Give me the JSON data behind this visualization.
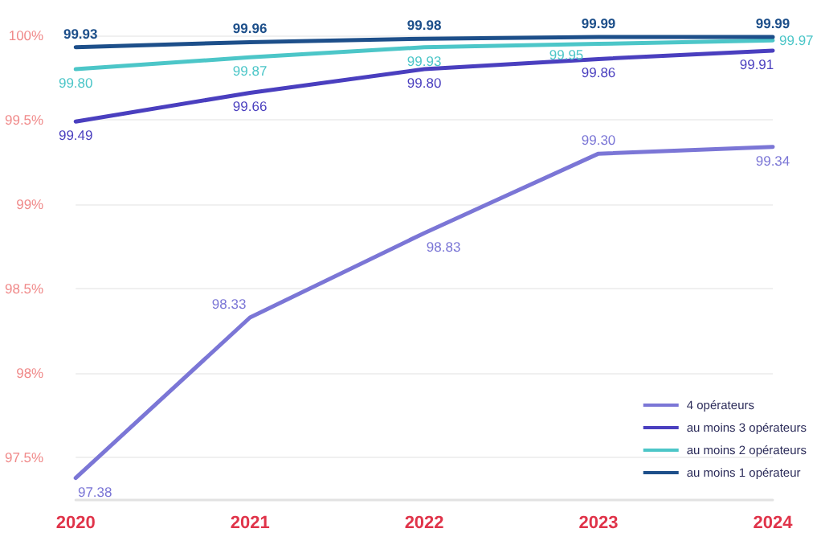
{
  "chart_data": {
    "type": "line",
    "categories": [
      "2020",
      "2021",
      "2022",
      "2023",
      "2024"
    ],
    "series": [
      {
        "name": "4 opérateurs",
        "color": "#7b76d6",
        "values": [
          97.38,
          98.33,
          98.83,
          99.3,
          99.34
        ],
        "value_labels": [
          "97.38",
          "98.33",
          "98.83",
          "99.30",
          "99.34"
        ]
      },
      {
        "name": "au moins 3 opérateurs",
        "color": "#4a3fbf",
        "values": [
          99.49,
          99.66,
          99.8,
          99.86,
          99.91
        ],
        "value_labels": [
          "99.49",
          "99.66",
          "99.80",
          "99.86",
          "99.91"
        ]
      },
      {
        "name": "au moins 2 opérateurs",
        "color": "#4cc6c8",
        "values": [
          99.8,
          99.87,
          99.93,
          99.95,
          99.97
        ],
        "value_labels": [
          "99.80",
          "99.87",
          "99.93",
          "99.95",
          "99.97"
        ]
      },
      {
        "name": "au moins 1 opérateur",
        "color": "#1d4f8a",
        "values": [
          99.93,
          99.96,
          99.98,
          99.99,
          99.99
        ],
        "value_labels": [
          "99.93",
          "99.96",
          "99.98",
          "99.99",
          "99.99"
        ]
      }
    ],
    "ylim": [
      97.25,
      100
    ],
    "yticks": [
      {
        "value": 97.5,
        "label": "97.5%"
      },
      {
        "value": 98,
        "label": "98%"
      },
      {
        "value": 98.5,
        "label": "98.5%"
      },
      {
        "value": 99,
        "label": "99%"
      },
      {
        "value": 99.5,
        "label": "99.5%"
      },
      {
        "value": 100,
        "label": "100%"
      }
    ],
    "grid": "y",
    "legend": "bottom right",
    "marker": "none",
    "line_style": "solid"
  }
}
